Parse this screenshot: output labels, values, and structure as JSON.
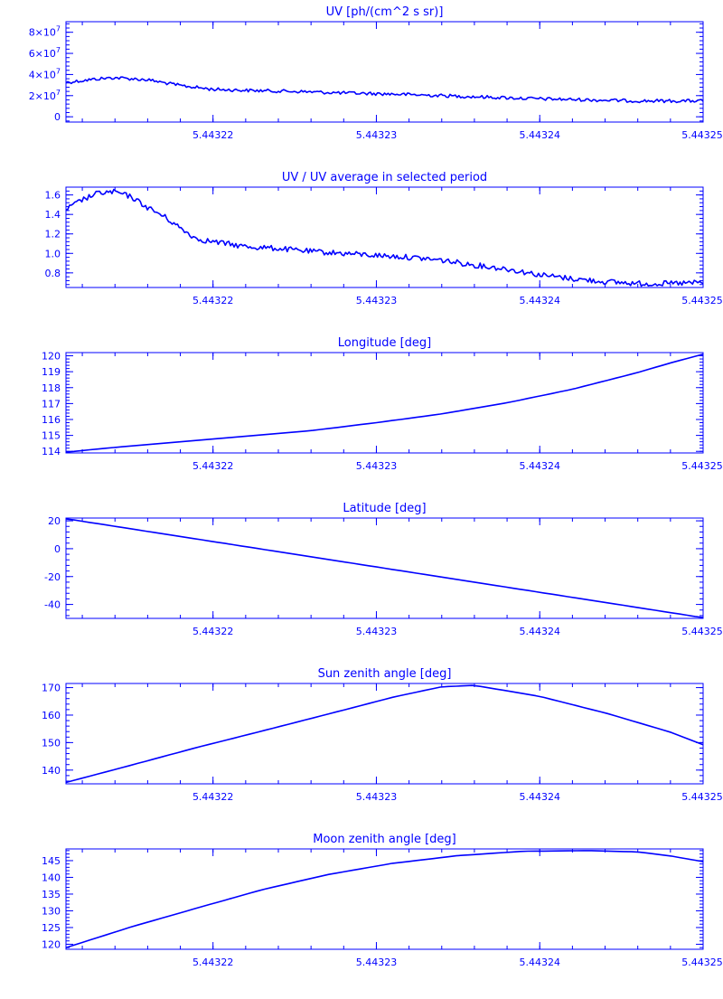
{
  "colors": {
    "foreground": "#0000ff",
    "background": "#ffffff"
  },
  "chart_data": [
    {
      "type": "line",
      "title": "UV [ph/(cm^2 s sr)]",
      "xlim": [
        5.443211,
        5.44325
      ],
      "ylim": [
        -5000000,
        90000000
      ],
      "x_ticks": [
        5.44322,
        5.44323,
        5.44324,
        5.44325
      ],
      "x_tick_labels": [
        "5.44322",
        "5.44323",
        "5.44324",
        "5.44325"
      ],
      "y_ticks": [
        0,
        20000000,
        40000000,
        60000000,
        80000000
      ],
      "y_tick_labels": [
        {
          "m": "0",
          "e": ""
        },
        {
          "m": "2×10",
          "e": "7"
        },
        {
          "m": "4×10",
          "e": "7"
        },
        {
          "m": "6×10",
          "e": "7"
        },
        {
          "m": "8×10",
          "e": "7"
        }
      ],
      "series": [
        {
          "noise": 0.6,
          "x": [
            5.443211,
            5.443213,
            5.443214,
            5.443216,
            5.443218,
            5.44322,
            5.443222,
            5.443225,
            5.443228,
            5.443231,
            5.443234,
            5.443237,
            5.44324,
            5.443243,
            5.443246,
            5.443248,
            5.44325
          ],
          "y": [
            32500000,
            36000000,
            37000000,
            35000000,
            29500000,
            26000000,
            25000000,
            24000000,
            22500000,
            21500000,
            20000000,
            18500000,
            17000000,
            16000000,
            15000000,
            15000000,
            15000000
          ]
        }
      ]
    },
    {
      "type": "line",
      "title": "UV / UV average in selected period",
      "xlim": [
        5.443211,
        5.44325
      ],
      "ylim": [
        0.65,
        1.68
      ],
      "x_ticks": [
        5.44322,
        5.44323,
        5.44324,
        5.44325
      ],
      "x_tick_labels": [
        "5.44322",
        "5.44323",
        "5.44324",
        "5.44325"
      ],
      "y_ticks": [
        0.8,
        1.0,
        1.2,
        1.4,
        1.6
      ],
      "y_tick_labels": [
        {
          "m": "0.8",
          "e": ""
        },
        {
          "m": "1.0",
          "e": ""
        },
        {
          "m": "1.2",
          "e": ""
        },
        {
          "m": "1.4",
          "e": ""
        },
        {
          "m": "1.6",
          "e": ""
        }
      ],
      "series": [
        {
          "noise": 1,
          "x": [
            5.443211,
            5.443212,
            5.443213,
            5.443214,
            5.443215,
            5.443216,
            5.443217,
            5.443218,
            5.443219,
            5.44322,
            5.443222,
            5.443224,
            5.443226,
            5.443228,
            5.44323,
            5.443232,
            5.443234,
            5.443236,
            5.443238,
            5.44324,
            5.443242,
            5.443244,
            5.443246,
            5.443248,
            5.44325
          ],
          "y": [
            1.45,
            1.55,
            1.62,
            1.63,
            1.58,
            1.47,
            1.38,
            1.26,
            1.15,
            1.12,
            1.07,
            1.05,
            1.02,
            1.0,
            0.98,
            0.96,
            0.93,
            0.88,
            0.84,
            0.78,
            0.74,
            0.71,
            0.69,
            0.69,
            0.7
          ]
        }
      ]
    },
    {
      "type": "line",
      "title": "Longitude [deg]",
      "xlim": [
        5.443211,
        5.44325
      ],
      "ylim": [
        113.9,
        120.2
      ],
      "x_ticks": [
        5.44322,
        5.44323,
        5.44324,
        5.44325
      ],
      "x_tick_labels": [
        "5.44322",
        "5.44323",
        "5.44324",
        "5.44325"
      ],
      "y_ticks": [
        114,
        115,
        116,
        117,
        118,
        119,
        120
      ],
      "y_tick_labels": [
        {
          "m": "114",
          "e": ""
        },
        {
          "m": "115",
          "e": ""
        },
        {
          "m": "116",
          "e": ""
        },
        {
          "m": "117",
          "e": ""
        },
        {
          "m": "118",
          "e": ""
        },
        {
          "m": "119",
          "e": ""
        },
        {
          "m": "120",
          "e": ""
        }
      ],
      "series": [
        {
          "noise": 0,
          "x": [
            5.443211,
            5.443214,
            5.443218,
            5.443222,
            5.443226,
            5.44323,
            5.443234,
            5.443238,
            5.443242,
            5.443246,
            5.443248,
            5.44325
          ],
          "y": [
            113.95,
            114.25,
            114.6,
            114.95,
            115.3,
            115.8,
            116.35,
            117.05,
            117.9,
            118.95,
            119.55,
            120.1
          ]
        }
      ]
    },
    {
      "type": "line",
      "title": "Latitude [deg]",
      "xlim": [
        5.443211,
        5.44325
      ],
      "ylim": [
        -50,
        22
      ],
      "x_ticks": [
        5.44322,
        5.44323,
        5.44324,
        5.44325
      ],
      "x_tick_labels": [
        "5.44322",
        "5.44323",
        "5.44324",
        "5.44325"
      ],
      "y_ticks": [
        -40,
        -20,
        0,
        20
      ],
      "y_tick_labels": [
        {
          "m": "-40",
          "e": ""
        },
        {
          "m": "-20",
          "e": ""
        },
        {
          "m": "0",
          "e": ""
        },
        {
          "m": "20",
          "e": ""
        }
      ],
      "series": [
        {
          "noise": 0,
          "x": [
            5.443211,
            5.44325
          ],
          "y": [
            21.5,
            -49.5
          ]
        }
      ]
    },
    {
      "type": "line",
      "title": "Sun zenith angle [deg]",
      "xlim": [
        5.443211,
        5.44325
      ],
      "ylim": [
        135,
        171.5
      ],
      "x_ticks": [
        5.44322,
        5.44323,
        5.44324,
        5.44325
      ],
      "x_tick_labels": [
        "5.44322",
        "5.44323",
        "5.44324",
        "5.44325"
      ],
      "y_ticks": [
        140,
        150,
        160,
        170
      ],
      "y_tick_labels": [
        {
          "m": "140",
          "e": ""
        },
        {
          "m": "150",
          "e": ""
        },
        {
          "m": "160",
          "e": ""
        },
        {
          "m": "170",
          "e": ""
        }
      ],
      "series": [
        {
          "noise": 0,
          "x": [
            5.443211,
            5.443215,
            5.443219,
            5.443223,
            5.443227,
            5.443231,
            5.443234,
            5.443236,
            5.44324,
            5.443244,
            5.443248,
            5.44325
          ],
          "y": [
            135.5,
            141.8,
            148.2,
            154.2,
            160.3,
            166.5,
            170.3,
            170.8,
            166.8,
            160.8,
            153.8,
            149.2
          ]
        }
      ]
    },
    {
      "type": "line",
      "title": "Moon zenith angle [deg]",
      "xlim": [
        5.443211,
        5.44325
      ],
      "ylim": [
        118.5,
        148.5
      ],
      "x_ticks": [
        5.44322,
        5.44323,
        5.44324,
        5.44325
      ],
      "x_tick_labels": [
        "5.44322",
        "5.44323",
        "5.44324",
        "5.44325"
      ],
      "y_ticks": [
        120,
        125,
        130,
        135,
        140,
        145
      ],
      "y_tick_labels": [
        {
          "m": "120",
          "e": ""
        },
        {
          "m": "125",
          "e": ""
        },
        {
          "m": "130",
          "e": ""
        },
        {
          "m": "135",
          "e": ""
        },
        {
          "m": "140",
          "e": ""
        },
        {
          "m": "145",
          "e": ""
        }
      ],
      "series": [
        {
          "noise": 0,
          "x": [
            5.443211,
            5.443215,
            5.443219,
            5.443223,
            5.443227,
            5.443231,
            5.443235,
            5.443239,
            5.443243,
            5.443246,
            5.443248,
            5.44325
          ],
          "y": [
            119.0,
            125.2,
            130.8,
            136.3,
            140.8,
            144.2,
            146.5,
            147.8,
            148.0,
            147.6,
            146.4,
            144.7
          ]
        }
      ]
    }
  ]
}
